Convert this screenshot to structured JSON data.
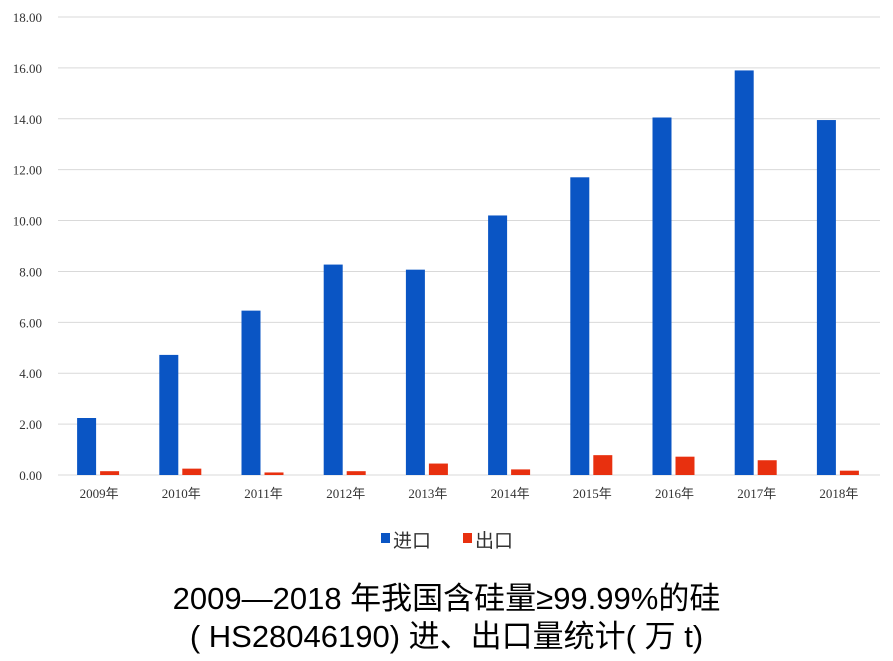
{
  "chart_data": {
    "type": "bar",
    "title": "2009—2018 年我国含硅量≥99.99%的硅",
    "subtitle": "( HS28046190) 进、出口量统计( 万 t)",
    "xlabel": "",
    "ylabel": "",
    "categories": [
      "2009年",
      "2010年",
      "2011年",
      "2012年",
      "2013年",
      "2014年",
      "2015年",
      "2016年",
      "2017年",
      "2018年"
    ],
    "series": [
      {
        "name": "进口",
        "color": "#0a55c4",
        "values": [
          2.24,
          4.72,
          6.46,
          8.27,
          8.07,
          10.2,
          11.7,
          14.05,
          15.9,
          13.95
        ]
      },
      {
        "name": "出口",
        "color": "#e8300f",
        "values": [
          0.15,
          0.25,
          0.1,
          0.15,
          0.45,
          0.22,
          0.78,
          0.72,
          0.58,
          0.17
        ]
      }
    ],
    "ylim": [
      0,
      18
    ],
    "yticks": [
      "0.00",
      "2.00",
      "4.00",
      "6.00",
      "8.00",
      "10.00",
      "12.00",
      "14.00",
      "16.00",
      "18.00"
    ],
    "grid": true,
    "legend_position": "bottom"
  }
}
